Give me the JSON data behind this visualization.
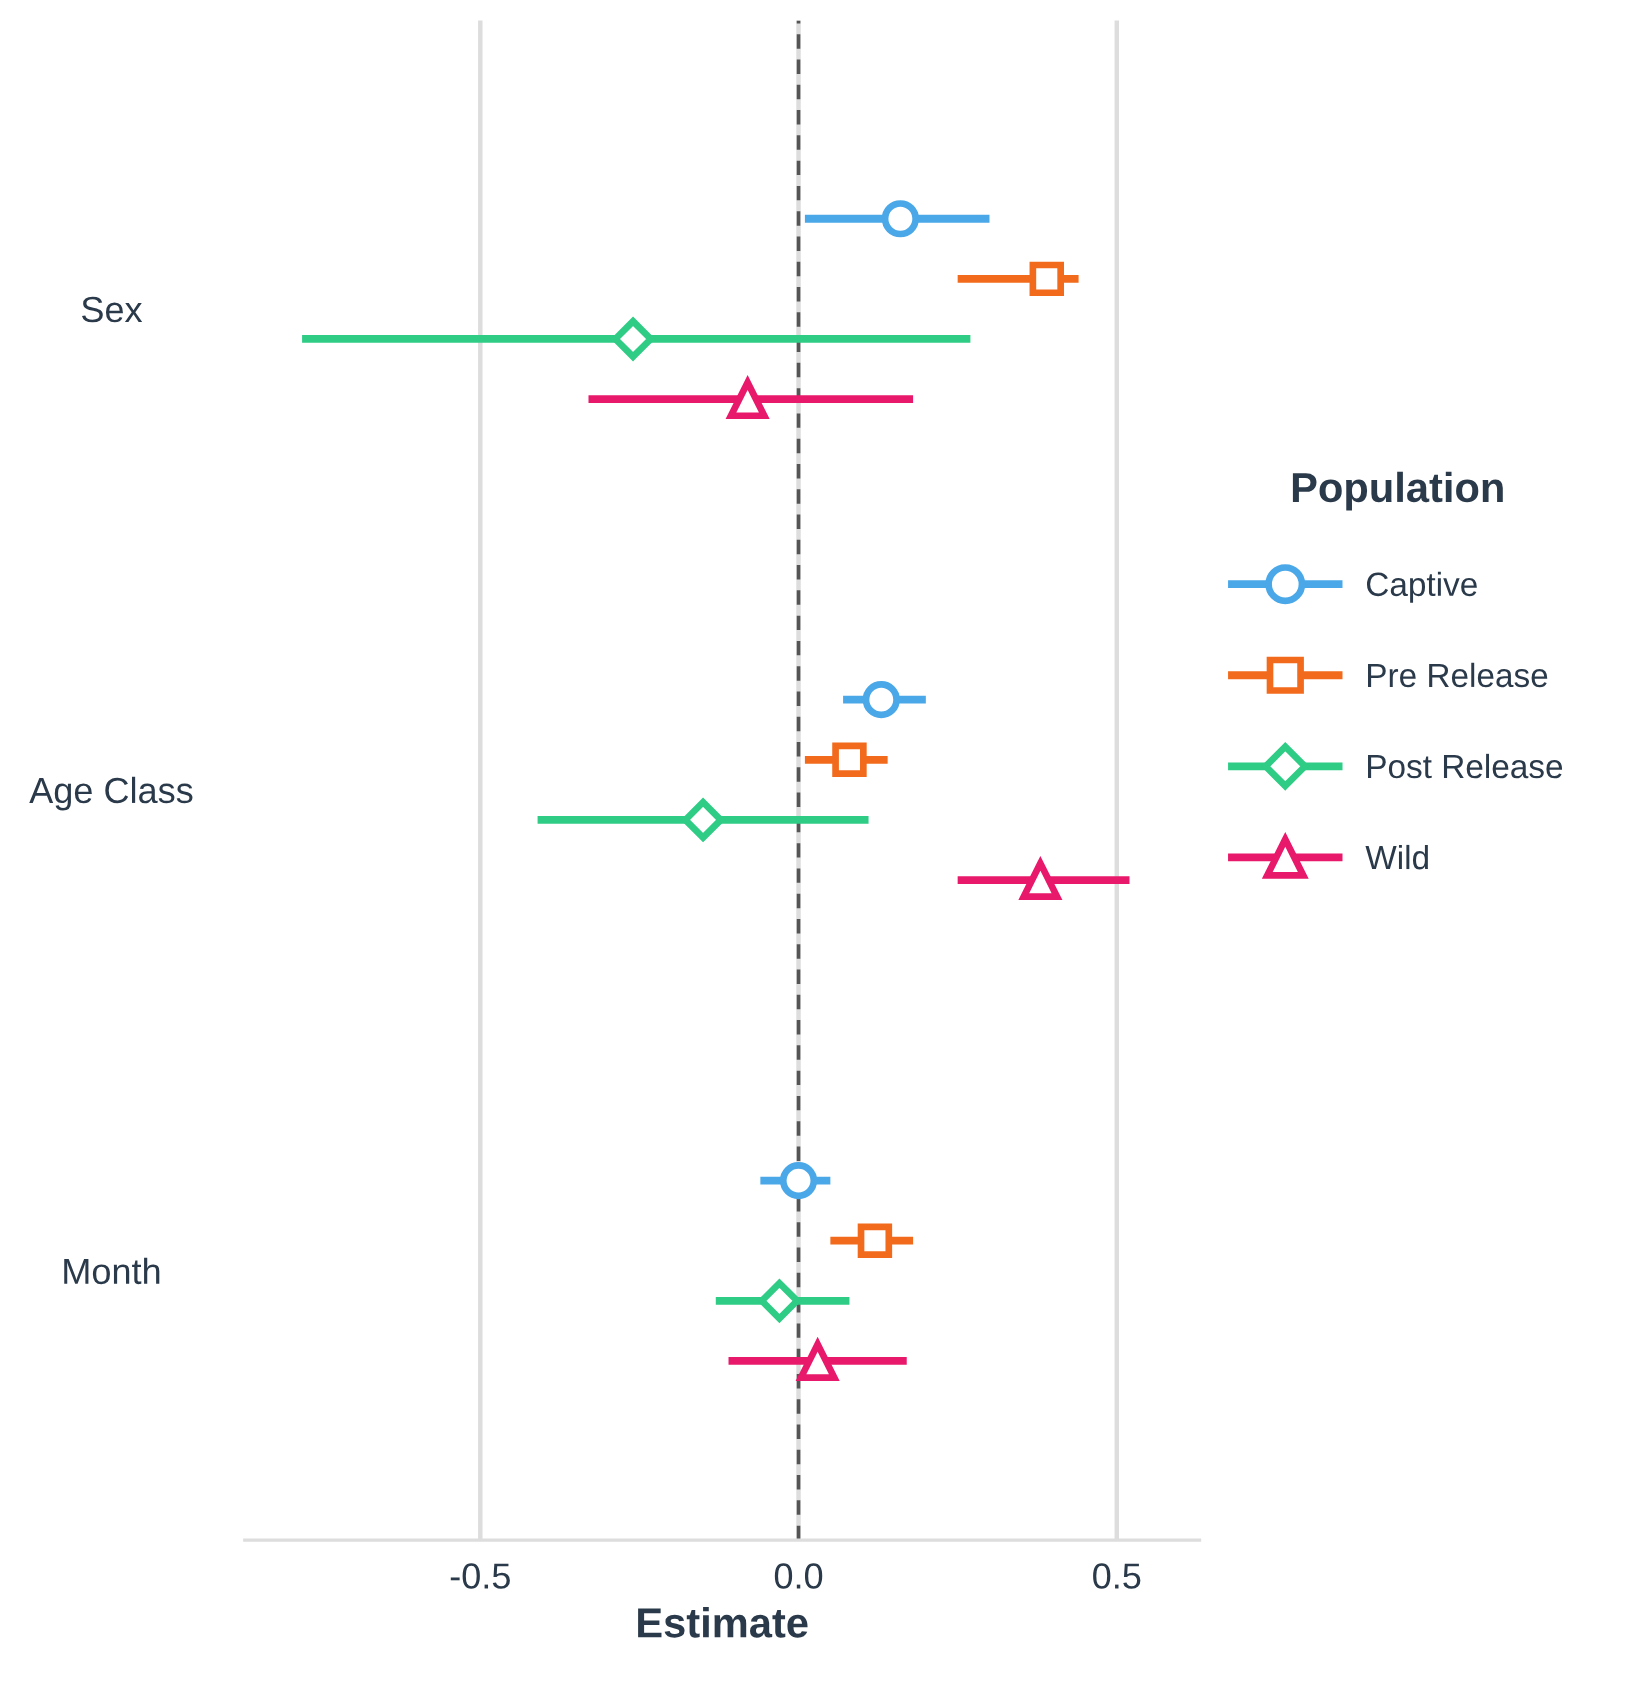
{
  "chart_data": {
    "type": "scatter",
    "orientation": "horizontal",
    "xlabel": "Estimate",
    "legend_title": "Population",
    "legend": "right",
    "categories": [
      "Sex",
      "Age Class",
      "Month"
    ],
    "series": [
      {
        "name": "Captive",
        "color": "#4aa8e8",
        "marker": "circle",
        "values": [
          0.16,
          0.13,
          0.0
        ],
        "errors": [
          [
            0.01,
            0.3
          ],
          [
            0.07,
            0.2
          ],
          [
            -0.06,
            0.05
          ]
        ]
      },
      {
        "name": "Pre Release",
        "color": "#f26b1d",
        "marker": "square",
        "values": [
          0.39,
          0.08,
          0.12
        ],
        "errors": [
          [
            0.25,
            0.44
          ],
          [
            0.01,
            0.14
          ],
          [
            0.05,
            0.18
          ]
        ]
      },
      {
        "name": "Post Release",
        "color": "#2ecc85",
        "marker": "diamond",
        "values": [
          -0.26,
          -0.15,
          -0.03
        ],
        "errors": [
          [
            -0.78,
            0.27
          ],
          [
            -0.41,
            0.11
          ],
          [
            -0.13,
            0.08
          ]
        ]
      },
      {
        "name": "Wild",
        "color": "#e8186a",
        "marker": "triangle",
        "values": [
          -0.08,
          0.38,
          0.03
        ],
        "errors": [
          [
            -0.33,
            0.18
          ],
          [
            0.25,
            0.52
          ],
          [
            -0.11,
            0.17
          ]
        ]
      }
    ],
    "xlim": [
      -0.87,
      0.63
    ],
    "xticks": [
      -0.5,
      {
        "value": 0,
        "label": "0.0"
      },
      0.5
    ],
    "grid": "x",
    "ref_lines": [
      {
        "axis": "x",
        "value": 0,
        "label": null,
        "color": "#555555",
        "line_style": "dashed"
      }
    ]
  }
}
